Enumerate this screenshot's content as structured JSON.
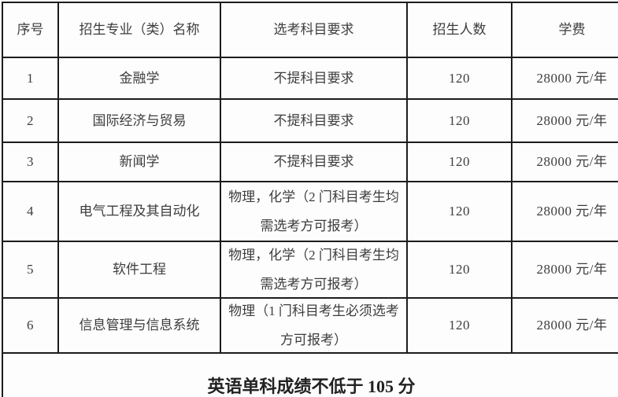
{
  "table": {
    "headers": {
      "no": "序号",
      "major": "招生专业（类）名称",
      "requirement": "选考科目要求",
      "count": "招生人数",
      "tuition": "学费"
    },
    "rows": [
      {
        "no": "1",
        "major": "金融学",
        "requirement": "不提科目要求",
        "count": "120",
        "tuition": "28000 元/年"
      },
      {
        "no": "2",
        "major": "国际经济与贸易",
        "requirement": "不提科目要求",
        "count": "120",
        "tuition": "28000 元/年"
      },
      {
        "no": "3",
        "major": "新闻学",
        "requirement": "不提科目要求",
        "count": "120",
        "tuition": "28000 元/年"
      },
      {
        "no": "4",
        "major": "电气工程及其自动化",
        "requirement": "物理，化学（2 门科目考生均需选考方可报考）",
        "count": "120",
        "tuition": "28000 元/年"
      },
      {
        "no": "5",
        "major": "软件工程",
        "requirement": "物理，化学（2 门科目考生均需选考方可报考）",
        "count": "120",
        "tuition": "28000 元/年"
      },
      {
        "no": "6",
        "major": "信息管理与信息系统",
        "requirement": "物理（1 门科目考生必须选考方可报考）",
        "count": "120",
        "tuition": "28000 元/年"
      }
    ],
    "footer_note": "英语单科成绩不低于 105 分",
    "colors": {
      "border": "#1c1c1c",
      "text": "#3d3d3d",
      "background": "#fdfdfd"
    }
  }
}
